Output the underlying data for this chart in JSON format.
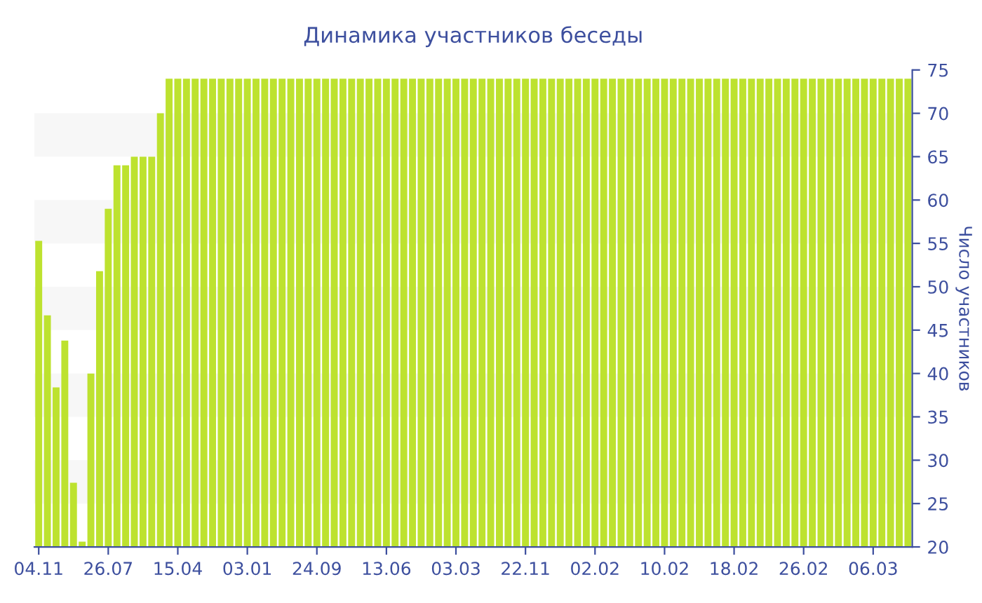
{
  "chart_data": {
    "type": "bar",
    "title": "Динамика участников беседы",
    "ylabel": "Число участников",
    "categories": [
      "04.11",
      null,
      null,
      null,
      null,
      null,
      null,
      null,
      "26.07",
      null,
      null,
      null,
      null,
      null,
      null,
      null,
      "15.04",
      null,
      null,
      null,
      null,
      null,
      null,
      null,
      "03.01",
      null,
      null,
      null,
      null,
      null,
      null,
      null,
      "24.09",
      null,
      null,
      null,
      null,
      null,
      null,
      null,
      "13.06",
      null,
      null,
      null,
      null,
      null,
      null,
      null,
      "03.03",
      null,
      null,
      null,
      null,
      null,
      null,
      null,
      "22.11",
      null,
      null,
      null,
      null,
      null,
      null,
      null,
      "02.02",
      null,
      null,
      null,
      null,
      null,
      null,
      null,
      "10.02",
      null,
      null,
      null,
      null,
      null,
      null,
      null,
      "18.02",
      null,
      null,
      null,
      null,
      null,
      null,
      null,
      "26.02",
      null,
      null,
      null,
      null,
      null,
      null,
      null,
      "06.03",
      null,
      null,
      null,
      null
    ],
    "values": [
      55.3,
      46.7,
      38.4,
      43.8,
      27.4,
      20.6,
      40,
      51.8,
      59,
      64,
      64,
      65,
      65,
      65,
      70,
      74,
      74,
      74,
      74,
      74,
      74,
      74,
      74,
      74,
      74,
      74,
      74,
      74,
      74,
      74,
      74,
      74,
      74,
      74,
      74,
      74,
      74,
      74,
      74,
      74,
      74,
      74,
      74,
      74,
      74,
      74,
      74,
      74,
      74,
      74,
      74,
      74,
      74,
      74,
      74,
      74,
      74,
      74,
      74,
      74,
      74,
      74,
      74,
      74,
      74,
      74,
      74,
      74,
      74,
      74,
      74,
      74,
      74,
      74,
      74,
      74,
      74,
      74,
      74,
      74,
      74,
      74,
      74,
      74,
      74,
      74,
      74,
      74,
      74,
      74,
      74,
      74,
      74,
      74,
      74,
      74,
      74,
      74,
      74,
      74,
      74
    ],
    "color": "#bde22f",
    "ylim": [
      20,
      75
    ],
    "yticks": [
      20,
      25,
      30,
      35,
      40,
      45,
      50,
      55,
      60,
      65,
      70,
      75
    ],
    "bands": [
      {
        "axis": "y",
        "from": 25,
        "to": 30,
        "color": "#f7f7f7"
      },
      {
        "axis": "y",
        "from": 35,
        "to": 40,
        "color": "#f7f7f7"
      },
      {
        "axis": "y",
        "from": 45,
        "to": 50,
        "color": "#f7f7f7"
      },
      {
        "axis": "y",
        "from": 55,
        "to": 60,
        "color": "#f7f7f7"
      },
      {
        "axis": "y",
        "from": 65,
        "to": 70,
        "color": "#f7f7f7"
      }
    ],
    "grid": false,
    "legend": false
  }
}
